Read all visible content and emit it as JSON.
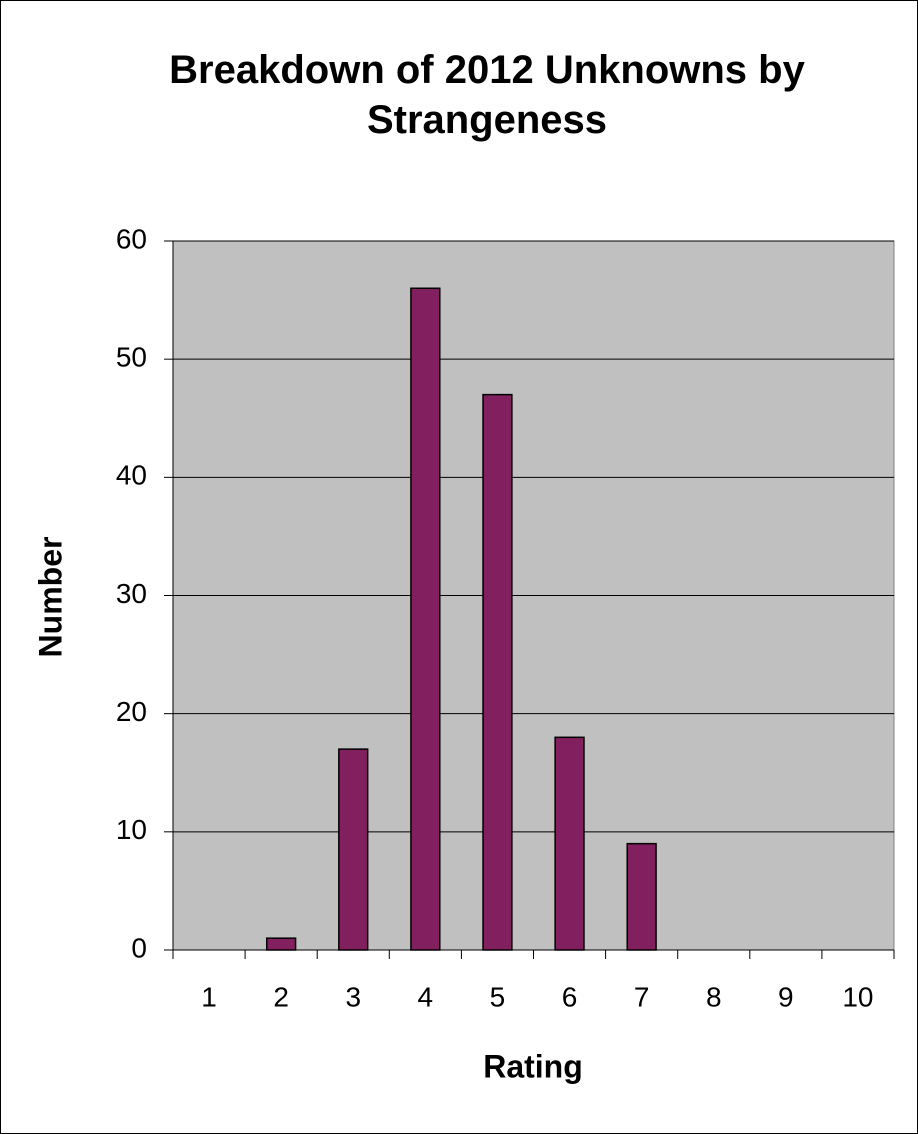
{
  "chart_data": {
    "type": "bar",
    "title": "Breakdown of 2012 Unknowns by Strangeness",
    "x_label": "Rating",
    "y_label": "Number",
    "categories": [
      "1",
      "2",
      "3",
      "4",
      "5",
      "6",
      "7",
      "8",
      "9",
      "10"
    ],
    "values": [
      0,
      1,
      17,
      56,
      47,
      18,
      9,
      0,
      0,
      0
    ],
    "color": "#821f5f",
    "ylim": [
      0,
      60
    ],
    "yticks": [
      0,
      10,
      20,
      30,
      40,
      50,
      60
    ],
    "grid": true
  }
}
